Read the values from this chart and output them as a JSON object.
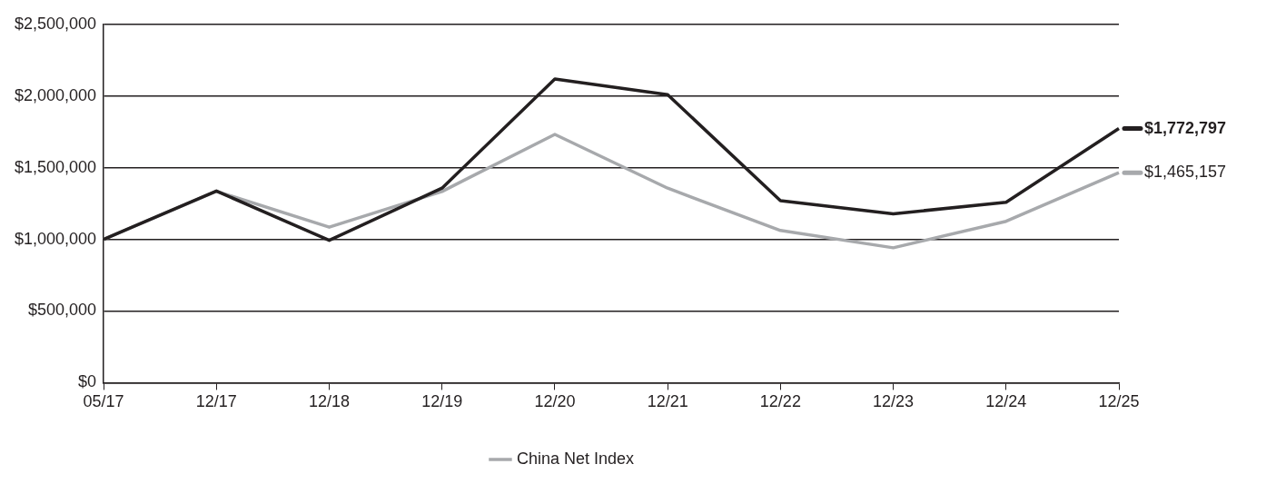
{
  "chart_data": {
    "type": "line",
    "categories": [
      "05/17",
      "12/17",
      "12/18",
      "12/19",
      "12/20",
      "12/21",
      "12/22",
      "12/23",
      "12/24",
      "12/25"
    ],
    "series": [
      {
        "color": "#231f20",
        "values": [
          1000000,
          1337000,
          993000,
          1357000,
          2119000,
          2009000,
          1270000,
          1178000,
          1259000,
          1772797
        ],
        "value_labels": [
          null,
          null,
          null,
          null,
          null,
          null,
          null,
          null,
          null,
          "$1,772,797"
        ]
      },
      {
        "name": "China Net Index",
        "color": "#a7a9ac",
        "values": [
          1000000,
          1335000,
          1085000,
          1334000,
          1732000,
          1357000,
          1062000,
          941000,
          1126000,
          1465157
        ],
        "value_labels": [
          null,
          null,
          null,
          null,
          null,
          null,
          null,
          null,
          null,
          "$1,465,157"
        ]
      }
    ],
    "ylim": [
      0,
      2500000
    ],
    "yticks": [
      {
        "value": 0,
        "label": "$0"
      },
      {
        "value": 500000,
        "label": "$500,000"
      },
      {
        "value": 1000000,
        "label": "$1,000,000"
      },
      {
        "value": 1500000,
        "label": "$1,500,000"
      },
      {
        "value": 2000000,
        "label": "$2,000,000"
      },
      {
        "value": 2500000,
        "label": "$2,500,000"
      }
    ],
    "grid": "y",
    "legend": "bottom",
    "marker": "none",
    "line_style": "solid"
  }
}
